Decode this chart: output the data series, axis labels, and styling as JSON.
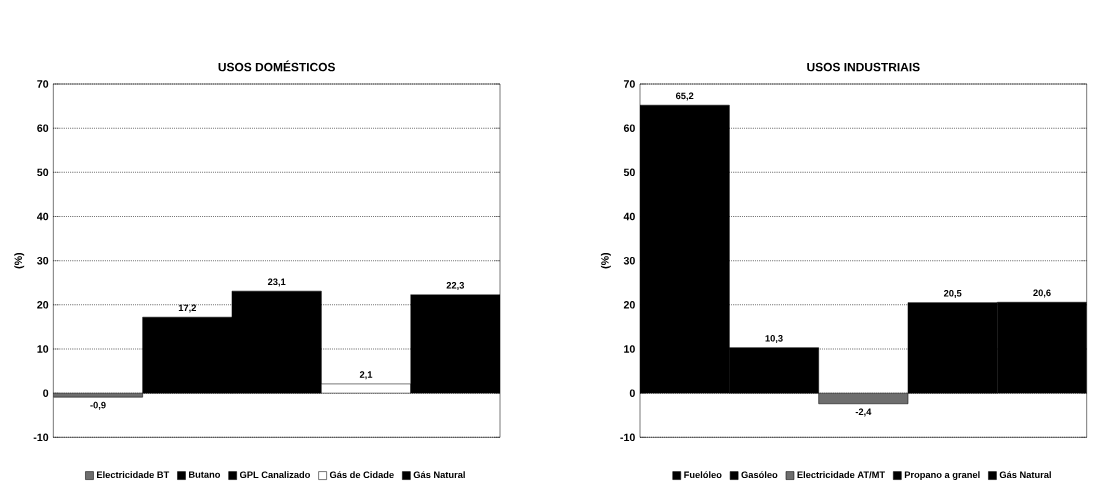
{
  "chart_data": [
    {
      "type": "bar",
      "title": "USOS DOMÉSTICOS",
      "ylabel": "(%)",
      "categories": [
        null
      ],
      "ylim": [
        -10,
        70
      ],
      "yticks": [
        -10,
        0,
        10,
        20,
        30,
        40,
        50,
        60,
        70
      ],
      "grid": "y",
      "legend": "bottom",
      "series": [
        {
          "name": "Electricidade BT",
          "color": "#6e6e6e",
          "values": [
            -0.9
          ],
          "value_labels": [
            "-0,9"
          ]
        },
        {
          "name": "Butano",
          "color": "#000000",
          "values": [
            17.2
          ],
          "value_labels": [
            "17,2"
          ]
        },
        {
          "name": "GPL Canalizado",
          "color": "#000000",
          "values": [
            23.1
          ],
          "value_labels": [
            "23,1"
          ]
        },
        {
          "name": "Gás de Cidade",
          "color": "#ffffff",
          "values": [
            2.1
          ],
          "value_labels": [
            "2,1"
          ]
        },
        {
          "name": "Gás Natural",
          "color": "#000000",
          "values": [
            22.3
          ],
          "value_labels": [
            "22,3"
          ]
        }
      ]
    },
    {
      "type": "bar",
      "title": "USOS INDUSTRIAIS",
      "ylabel": "(%)",
      "categories": [
        null
      ],
      "ylim": [
        -10,
        70
      ],
      "yticks": [
        -10,
        0,
        10,
        20,
        30,
        40,
        50,
        60,
        70
      ],
      "grid": "y",
      "legend": "bottom",
      "series": [
        {
          "name": "Fuelóleo",
          "color": "#000000",
          "values": [
            65.2
          ],
          "value_labels": [
            "65,2"
          ]
        },
        {
          "name": "Gasóleo",
          "color": "#000000",
          "values": [
            10.3
          ],
          "value_labels": [
            "10,3"
          ]
        },
        {
          "name": "Electricidade AT/MT",
          "color": "#6e6e6e",
          "values": [
            -2.4
          ],
          "value_labels": [
            "-2,4"
          ]
        },
        {
          "name": "Propano a granel",
          "color": "#000000",
          "values": [
            20.5
          ],
          "value_labels": [
            "20,5"
          ]
        },
        {
          "name": "Gás Natural",
          "color": "#000000",
          "values": [
            20.6
          ],
          "value_labels": [
            "20,6"
          ]
        }
      ]
    }
  ]
}
